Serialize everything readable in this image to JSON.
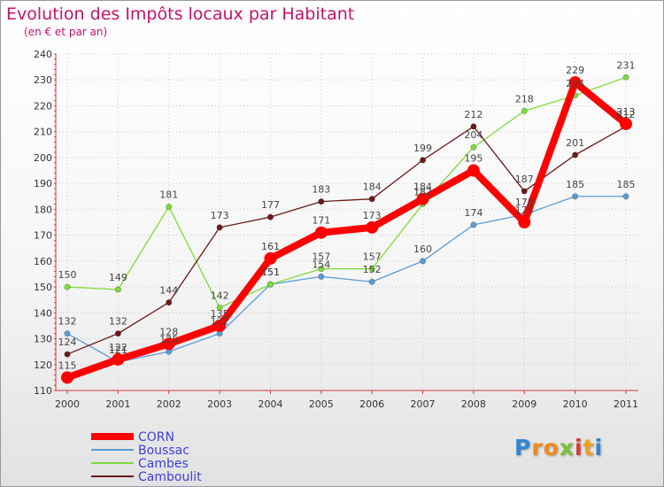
{
  "chart_data": {
    "type": "line",
    "title": "Evolution des Impôts locaux par Habitant",
    "subtitle": "(en € et par an)",
    "xlabel": "",
    "ylabel": "",
    "categories": [
      "2000",
      "2001",
      "2002",
      "2003",
      "2004",
      "2005",
      "2006",
      "2007",
      "2008",
      "2009",
      "2010",
      "2011"
    ],
    "ylim": [
      110,
      240
    ],
    "yticks": [
      110,
      120,
      130,
      140,
      150,
      160,
      170,
      180,
      190,
      200,
      210,
      220,
      230,
      240
    ],
    "grid": true,
    "legend_position": "bottom-left",
    "series": [
      {
        "name": "CORN",
        "color": "#ff0000",
        "values": [
          115,
          122,
          128,
          135,
          161,
          171,
          173,
          184,
          195,
          175,
          229,
          213
        ]
      },
      {
        "name": "Boussac",
        "color": "#5b9bd5",
        "values": [
          132,
          121,
          125,
          132,
          151,
          154,
          152,
          160,
          174,
          178,
          185,
          185
        ]
      },
      {
        "name": "Cambes",
        "color": "#7fdc3c",
        "values": [
          150,
          149,
          181,
          142,
          151,
          157,
          157,
          182,
          204,
          218,
          224,
          231
        ]
      },
      {
        "name": "Camboulit",
        "color": "#6b1a1a",
        "values": [
          124,
          132,
          144,
          173,
          177,
          183,
          184,
          199,
          212,
          187,
          201,
          212
        ]
      }
    ]
  },
  "brand": {
    "letters": [
      "P",
      "r",
      "o",
      "x",
      "i",
      "t",
      "i"
    ],
    "colors": [
      "#2f86d6",
      "#f08a1a",
      "#f08a1a",
      "#7cc23a",
      "#d83a3a",
      "#f0a020",
      "#2f86d6"
    ]
  }
}
